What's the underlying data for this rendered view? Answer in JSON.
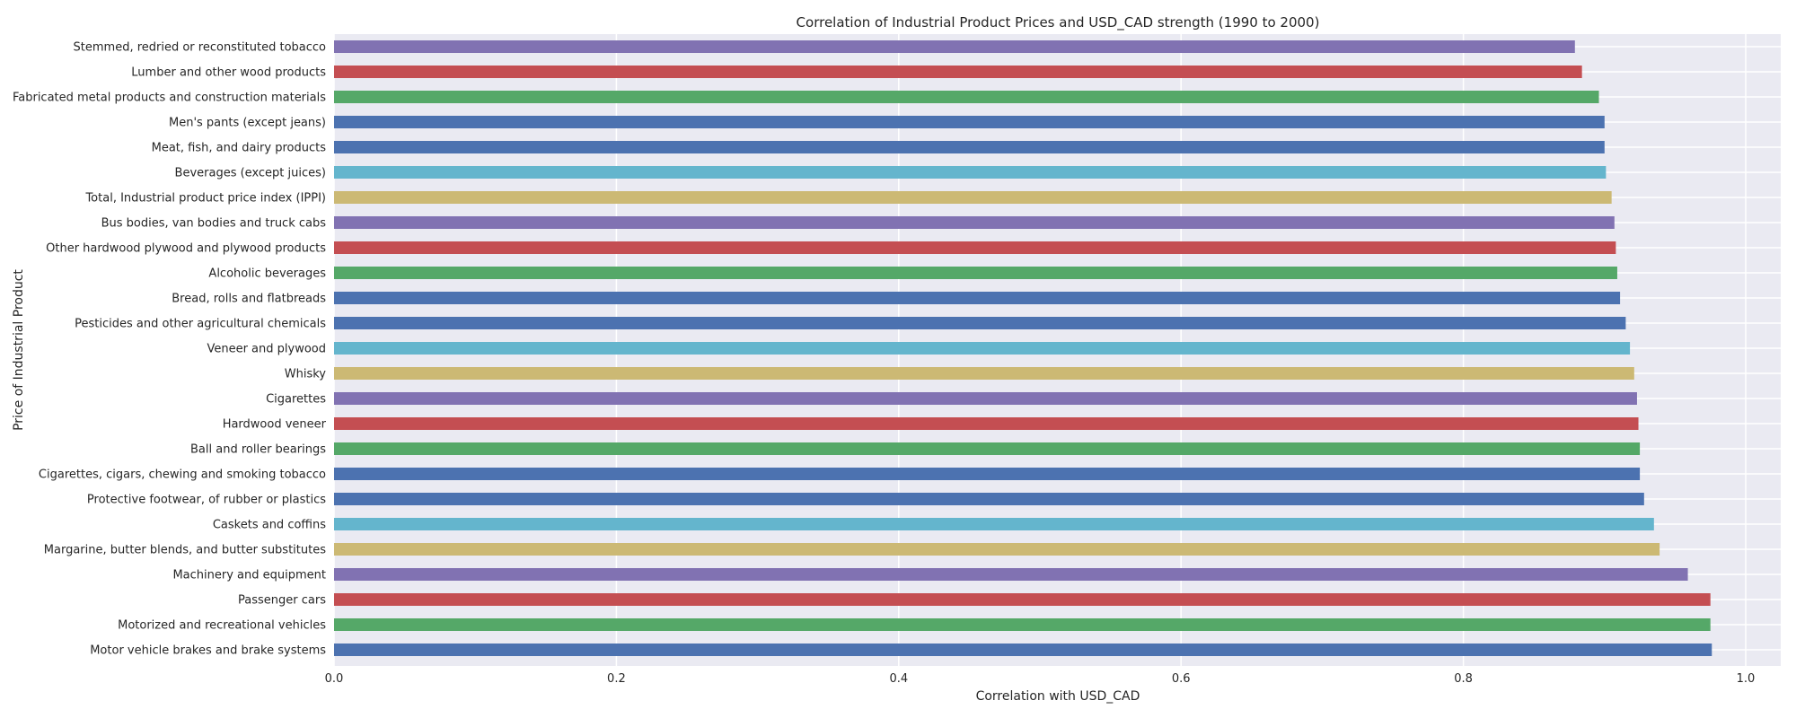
{
  "chart_data": {
    "type": "bar",
    "orientation": "horizontal",
    "title": "Correlation of Industrial Product Prices and USD_CAD strength (1990 to 2000)",
    "xlabel": "Correlation with USD_CAD",
    "ylabel": "Price of Industrial Product",
    "xlim": [
      0.0,
      1.025
    ],
    "x_ticks": [
      0.0,
      0.2,
      0.4,
      0.6,
      0.8,
      1.0
    ],
    "x_tick_labels": [
      "0.0",
      "0.2",
      "0.4",
      "0.6",
      "0.8",
      "1.0"
    ],
    "grid": true,
    "categories": [
      "Motor vehicle brakes and brake systems",
      "Motorized and recreational vehicles",
      "Passenger cars",
      "Machinery and equipment",
      "Margarine, butter blends, and butter substitutes",
      "Caskets and coffins",
      "Protective footwear, of rubber or plastics",
      "Cigarettes, cigars, chewing and smoking tobacco",
      "Ball and roller bearings",
      "Hardwood veneer",
      "Cigarettes",
      "Whisky",
      "Veneer and plywood",
      "Pesticides and other agricultural chemicals",
      "Bread, rolls and flatbreads",
      "Alcoholic beverages",
      "Other hardwood plywood and plywood products",
      "Bus bodies, van bodies and truck cabs",
      "Total, Industrial product price index (IPPI)",
      "Beverages (except juices)",
      "Meat, fish, and dairy products",
      "Men's pants (except jeans)",
      "Fabricated metal products and construction materials",
      "Lumber and other wood products",
      "Stemmed, redried or reconstituted tobacco"
    ],
    "values": [
      0.976,
      0.975,
      0.975,
      0.959,
      0.939,
      0.935,
      0.928,
      0.925,
      0.925,
      0.924,
      0.923,
      0.921,
      0.918,
      0.915,
      0.911,
      0.909,
      0.908,
      0.907,
      0.905,
      0.901,
      0.9,
      0.9,
      0.896,
      0.884,
      0.879
    ],
    "bar_colors": [
      "#4C72B0",
      "#55A868",
      "#C44E52",
      "#8172B2",
      "#CCB974",
      "#64B5CD",
      "#4C72B0",
      "#4C72B0",
      "#55A868",
      "#C44E52",
      "#8172B2",
      "#CCB974",
      "#64B5CD",
      "#4C72B0",
      "#4C72B0",
      "#55A868",
      "#C44E52",
      "#8172B2",
      "#CCB974",
      "#64B5CD",
      "#4C72B0",
      "#4C72B0",
      "#55A868",
      "#C44E52",
      "#8172B2"
    ],
    "plot_background": "#EAEAF2",
    "grid_color": "#FFFFFF"
  }
}
